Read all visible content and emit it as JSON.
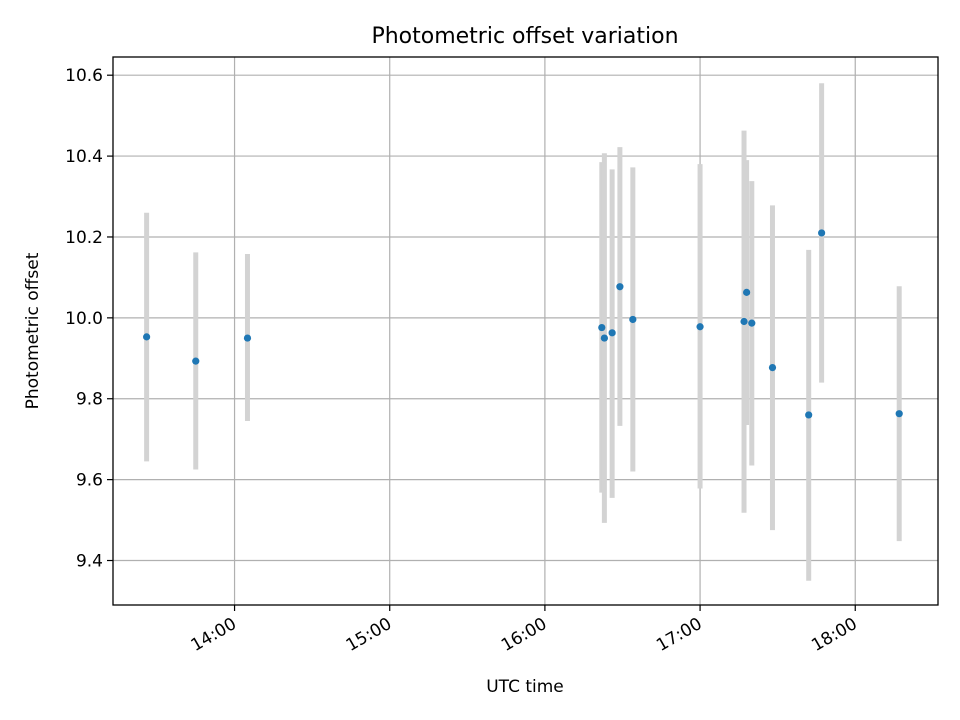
{
  "chart_data": {
    "type": "scatter",
    "title": "Photometric offset variation",
    "xlabel": "UTC time",
    "ylabel": "Photometric offset",
    "x_unit": "UTC time of day (HH:MM)",
    "xlim": [
      "13:13",
      "18:32"
    ],
    "ylim": [
      9.29,
      10.645
    ],
    "xticks": [
      "14:00",
      "15:00",
      "16:00",
      "17:00",
      "18:00"
    ],
    "yticks": [
      "9.4",
      "9.6",
      "9.8",
      "10.0",
      "10.2",
      "10.4",
      "10.6"
    ],
    "grid": true,
    "marker_color": "#1f77b4",
    "errorbar_color": "#d3d3d3",
    "series": [
      {
        "points": [
          {
            "x": "13:26",
            "y": 9.953,
            "ylow": 9.645,
            "yhigh": 10.26
          },
          {
            "x": "13:45",
            "y": 9.893,
            "ylow": 9.625,
            "yhigh": 10.162
          },
          {
            "x": "14:05",
            "y": 9.95,
            "ylow": 9.745,
            "yhigh": 10.158
          },
          {
            "x": "16:22",
            "y": 9.976,
            "ylow": 9.568,
            "yhigh": 10.385
          },
          {
            "x": "16:23",
            "y": 9.95,
            "ylow": 9.493,
            "yhigh": 10.407
          },
          {
            "x": "16:26",
            "y": 9.963,
            "ylow": 9.555,
            "yhigh": 10.367
          },
          {
            "x": "16:29",
            "y": 10.077,
            "ylow": 9.733,
            "yhigh": 10.422
          },
          {
            "x": "16:34",
            "y": 9.996,
            "ylow": 9.62,
            "yhigh": 10.372
          },
          {
            "x": "17:00",
            "y": 9.978,
            "ylow": 9.578,
            "yhigh": 10.38
          },
          {
            "x": "17:17",
            "y": 9.991,
            "ylow": 9.518,
            "yhigh": 10.463
          },
          {
            "x": "17:18",
            "y": 10.063,
            "ylow": 9.735,
            "yhigh": 10.39
          },
          {
            "x": "17:20",
            "y": 9.987,
            "ylow": 9.635,
            "yhigh": 10.338
          },
          {
            "x": "17:28",
            "y": 9.877,
            "ylow": 9.475,
            "yhigh": 10.278
          },
          {
            "x": "17:42",
            "y": 9.76,
            "ylow": 9.35,
            "yhigh": 10.168
          },
          {
            "x": "17:47",
            "y": 10.21,
            "ylow": 9.84,
            "yhigh": 10.58
          },
          {
            "x": "18:17",
            "y": 9.763,
            "ylow": 9.448,
            "yhigh": 10.078
          }
        ]
      }
    ]
  }
}
